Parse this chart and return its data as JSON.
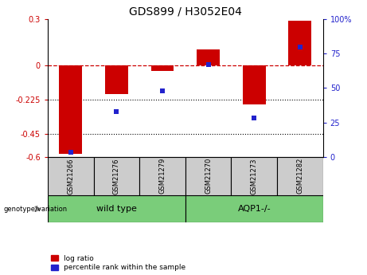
{
  "title": "GDS899 / H3052E04",
  "categories": [
    "GSM21266",
    "GSM21276",
    "GSM21279",
    "GSM21270",
    "GSM21273",
    "GSM21282"
  ],
  "log_ratio": [
    -0.58,
    -0.19,
    -0.04,
    0.1,
    -0.255,
    0.29
  ],
  "percentile_rank": [
    3,
    33,
    48,
    67,
    28,
    80
  ],
  "ylim_left": [
    -0.6,
    0.3
  ],
  "ylim_right": [
    0,
    100
  ],
  "yticks_left": [
    0.3,
    0,
    -0.225,
    -0.45,
    -0.6
  ],
  "yticks_right": [
    100,
    75,
    50,
    25,
    0
  ],
  "dotted_lines": [
    -0.225,
    -0.45
  ],
  "bar_color": "#cc0000",
  "dot_color": "#2222cc",
  "red_label": "#cc0000",
  "blue_label": "#2222cc",
  "green_color": "#7acd7a",
  "gray_color": "#cccccc",
  "legend_labels": [
    "log ratio",
    "percentile rank within the sample"
  ],
  "title_fontsize": 10,
  "tick_fontsize": 7,
  "cat_fontsize": 6,
  "grp_fontsize": 8
}
